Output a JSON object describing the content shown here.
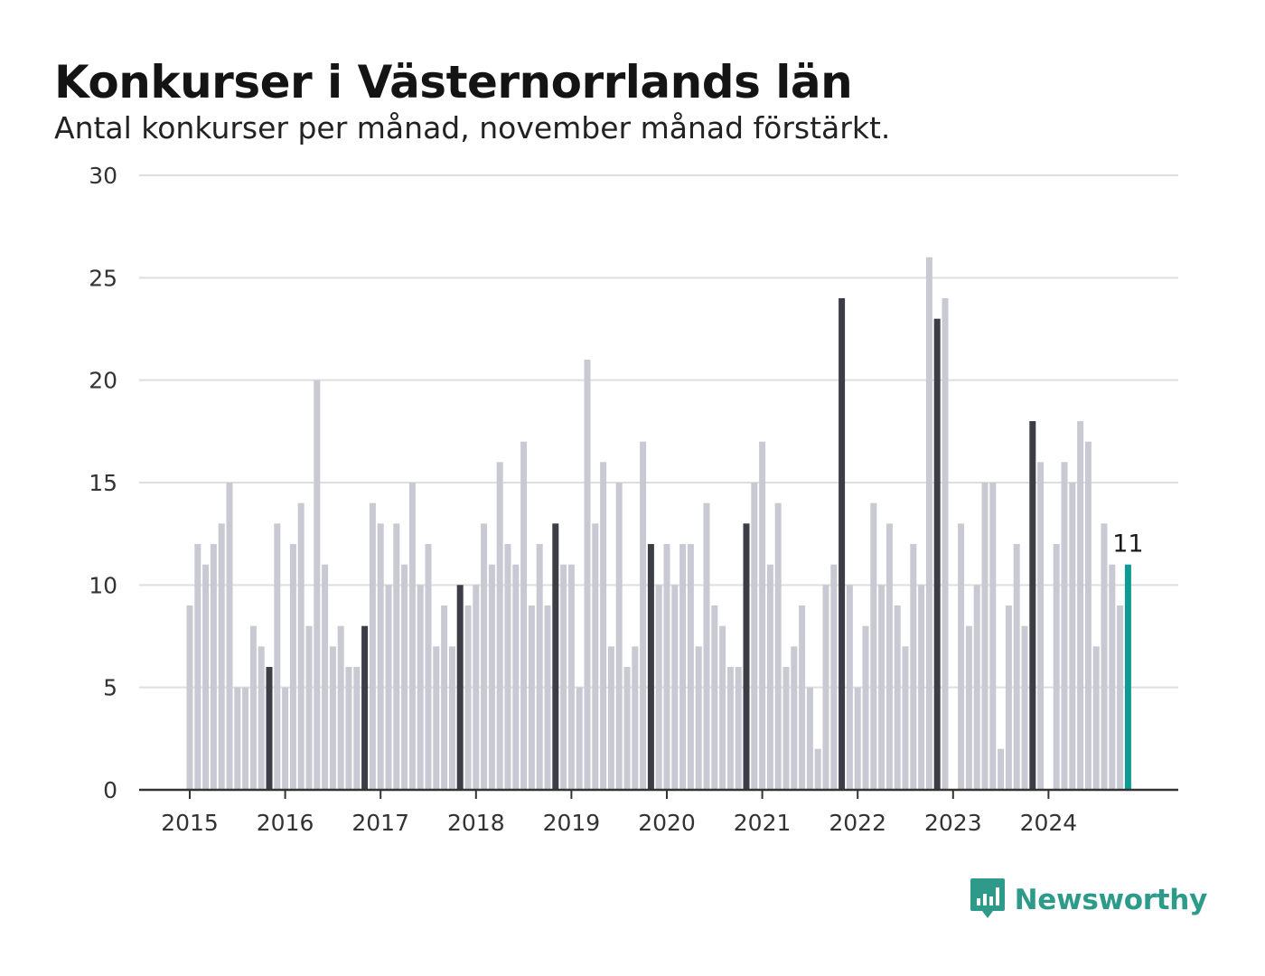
{
  "chart_data": {
    "type": "bar",
    "title": "Konkurser i Västernorrlands län",
    "subtitle": "Antal konkurser per månad, november månad förstärkt.",
    "x_ticks": [
      "2015",
      "2016",
      "2017",
      "2018",
      "2019",
      "2020",
      "2021",
      "2022",
      "2023",
      "2024"
    ],
    "y_ticks": [
      0,
      5,
      10,
      15,
      20,
      25,
      30
    ],
    "ylim": [
      0,
      30
    ],
    "grid": true,
    "start": "2015-01",
    "end": "2024-11",
    "values": [
      9,
      12,
      11,
      12,
      13,
      15,
      5,
      5,
      8,
      7,
      6,
      13,
      5,
      12,
      14,
      8,
      20,
      11,
      7,
      8,
      6,
      6,
      8,
      14,
      13,
      10,
      13,
      11,
      15,
      10,
      12,
      7,
      9,
      7,
      10,
      9,
      10,
      13,
      11,
      16,
      12,
      11,
      17,
      9,
      12,
      9,
      13,
      11,
      11,
      5,
      21,
      13,
      16,
      7,
      15,
      6,
      7,
      17,
      12,
      10,
      12,
      10,
      12,
      12,
      7,
      14,
      9,
      8,
      6,
      6,
      13,
      15,
      17,
      11,
      14,
      6,
      7,
      9,
      5,
      2,
      10,
      11,
      24,
      10,
      5,
      8,
      14,
      10,
      13,
      9,
      7,
      12,
      10,
      26,
      23,
      24,
      0,
      13,
      8,
      10,
      15,
      15,
      2,
      9,
      12,
      8,
      18,
      16,
      0,
      12,
      16,
      15,
      18,
      17,
      7,
      13,
      11,
      9,
      11
    ],
    "highlight_month": "november",
    "annotation": "11",
    "colors": {
      "regular": "#c9c9d3",
      "november": "#3d3d47",
      "latest": "#0f9b94",
      "grid": "#dedede",
      "axis": "#333333"
    }
  },
  "brand": {
    "name": "Newsworthy",
    "color": "#2e9b8a",
    "icon": "bar-chart-speech-bubble-icon"
  }
}
